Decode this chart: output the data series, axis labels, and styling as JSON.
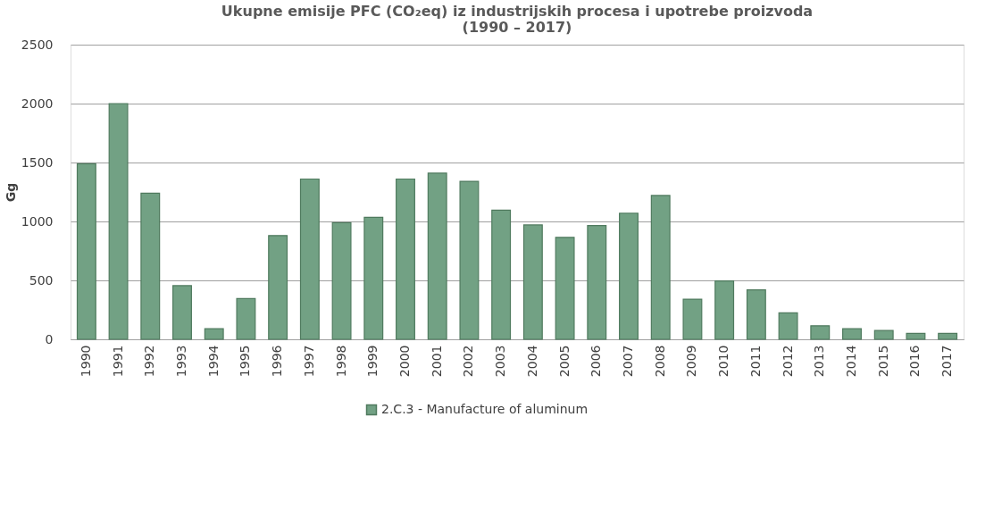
{
  "chart_data": {
    "type": "bar",
    "title": "Ukupne emisije PFC (CO₂eq) iz industrijskih procesa i upotrebe proizvoda (1990 – 2017)",
    "ylabel": "Gg",
    "categories": [
      "1990",
      "1991",
      "1992",
      "1993",
      "1994",
      "1995",
      "1996",
      "1997",
      "1998",
      "1999",
      "2000",
      "2001",
      "2002",
      "2003",
      "2004",
      "2005",
      "2006",
      "2007",
      "2008",
      "2009",
      "2010",
      "2011",
      "2012",
      "2013",
      "2014",
      "2015",
      "2016",
      "2017"
    ],
    "series": [
      {
        "name": "2.C.3 - Manufacture of aluminum",
        "color": "#72a184",
        "values": [
          1490,
          2000,
          1240,
          455,
          90,
          345,
          880,
          1360,
          990,
          1035,
          1360,
          1410,
          1340,
          1095,
          970,
          865,
          965,
          1070,
          1220,
          340,
          495,
          420,
          225,
          115,
          90,
          75,
          50,
          50
        ]
      }
    ],
    "ylim": [
      0,
      2500
    ],
    "yticks": [
      0,
      500,
      1000,
      1500,
      2000,
      2500
    ],
    "grid": "y",
    "legend": "bottom"
  }
}
